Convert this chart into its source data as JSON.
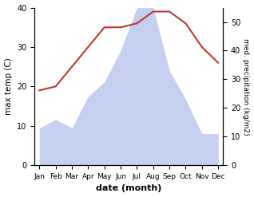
{
  "months": [
    "Jan",
    "Feb",
    "Mar",
    "Apr",
    "May",
    "Jun",
    "Jul",
    "Aug",
    "Sep",
    "Oct",
    "Nov",
    "Dec"
  ],
  "temperature": [
    19,
    20,
    25,
    30,
    35,
    35,
    36,
    39,
    39,
    36,
    30,
    26
  ],
  "precipitation": [
    13,
    16,
    13,
    24,
    29,
    40,
    55,
    55,
    33,
    23,
    11,
    11
  ],
  "temp_color": "#c0392b",
  "precip_fill_color": "#c5cff0",
  "temp_ylim": [
    0,
    40
  ],
  "precip_ylim": [
    0,
    55
  ],
  "temp_yticks": [
    0,
    10,
    20,
    30,
    40
  ],
  "precip_yticks": [
    0,
    10,
    20,
    30,
    40,
    50
  ],
  "xlabel": "date (month)",
  "ylabel_left": "max temp (C)",
  "ylabel_right": "med. precipitation (kg/m2)",
  "fig_width": 3.18,
  "fig_height": 2.47,
  "dpi": 100
}
